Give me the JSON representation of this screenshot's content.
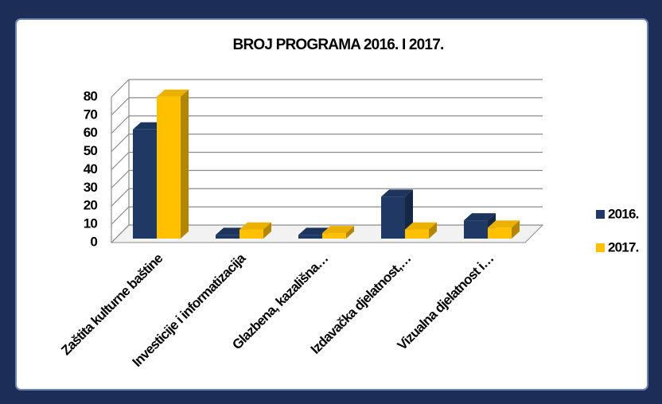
{
  "chart_data": {
    "type": "bar3d",
    "title": "BROJ PROGRAMA 2016. I 2017.",
    "categories": [
      "Zaštita kulturne baštine",
      "Investicije i informatizacija",
      "Glazbena, kazališna…",
      "Izdavačka djelatnost,…",
      "Vizualna djelatnost i…"
    ],
    "series": [
      {
        "name": "2016.",
        "color": "#1f3864",
        "values": [
          60,
          2,
          2,
          23,
          10
        ]
      },
      {
        "name": "2017.",
        "color": "#ffc000",
        "values": [
          78,
          5,
          3,
          5,
          6
        ]
      }
    ],
    "ylim": [
      0,
      80
    ],
    "yticks": [
      0,
      10,
      20,
      30,
      40,
      50,
      60,
      70,
      80
    ],
    "grid": true,
    "legend": "right"
  }
}
